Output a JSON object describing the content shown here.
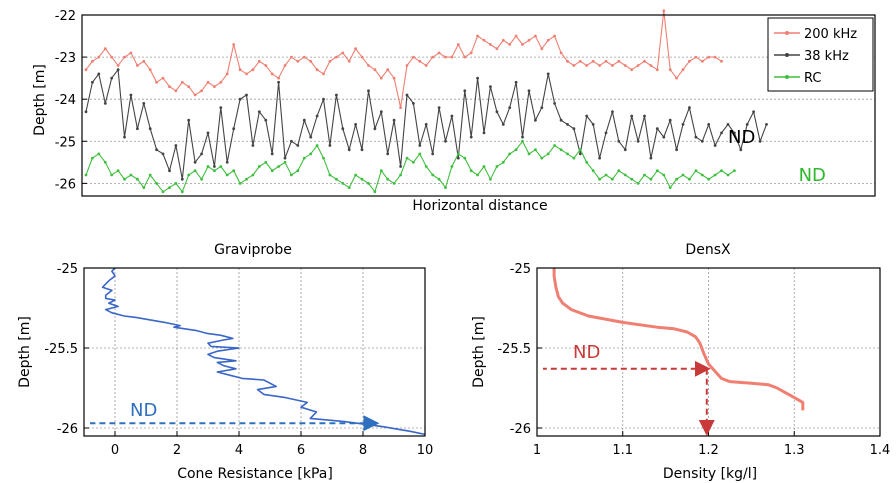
{
  "chart_data": [
    {
      "type": "line",
      "title": "",
      "xlabel": "Horizontal distance",
      "ylabel": "Depth [m]",
      "ylim": [
        -22,
        -26.3
      ],
      "yticks": [
        "-22",
        "-23",
        "-24",
        "-25",
        "-26"
      ],
      "grid": true,
      "legend_position": "top-right",
      "colors": {
        "200 kHz": "#f07f72",
        "38 kHz": "#444444",
        "RC": "#3fbf3f"
      },
      "series": [
        {
          "name": "200 kHz",
          "values": [
            -23.3,
            -23.1,
            -23.0,
            -22.8,
            -23.0,
            -23.2,
            -23.0,
            -22.9,
            -23.2,
            -23.1,
            -23.3,
            -23.6,
            -23.5,
            -23.7,
            -23.8,
            -23.6,
            -23.7,
            -23.9,
            -23.8,
            -23.6,
            -23.7,
            -23.6,
            -23.4,
            -22.7,
            -23.3,
            -23.4,
            -23.3,
            -23.1,
            -23.2,
            -23.4,
            -23.5,
            -23.2,
            -23.0,
            -23.1,
            -23.0,
            -23.1,
            -23.3,
            -23.4,
            -23.1,
            -23.0,
            -22.9,
            -23.1,
            -22.8,
            -23.0,
            -23.2,
            -23.3,
            -23.5,
            -23.3,
            -23.5,
            -24.2,
            -23.2,
            -23.0,
            -23.1,
            -23.2,
            -23.0,
            -22.9,
            -23.0,
            -23.0,
            -22.7,
            -23.0,
            -22.9,
            -22.5,
            -22.6,
            -22.7,
            -22.8,
            -22.6,
            -22.7,
            -22.5,
            -22.7,
            -22.6,
            -22.5,
            -22.8,
            -22.6,
            -22.5,
            -22.9,
            -23.1,
            -23.2,
            -23.1,
            -23.2,
            -23.1,
            -23.2,
            -23.1,
            -23.2,
            -23.1,
            -23.2,
            -23.3,
            -23.2,
            -23.1,
            -23.2,
            -23.3,
            -21.9,
            -23.3,
            -23.5,
            -23.3,
            -23.1,
            -23.0,
            -23.1,
            -23.0,
            -23.0,
            -23.1
          ]
        },
        {
          "name": "38 kHz",
          "values": [
            -24.3,
            -23.6,
            -23.4,
            -24.1,
            -23.5,
            -23.3,
            -24.9,
            -23.9,
            -24.7,
            -24.1,
            -24.7,
            -25.2,
            -25.3,
            -25.7,
            -25.1,
            -25.9,
            -24.5,
            -25.5,
            -25.3,
            -24.8,
            -25.6,
            -24.2,
            -25.5,
            -24.7,
            -24.0,
            -23.9,
            -25.1,
            -24.3,
            -24.5,
            -25.3,
            -23.6,
            -25.4,
            -25.0,
            -25.1,
            -24.5,
            -24.9,
            -24.4,
            -24.0,
            -25.1,
            -23.9,
            -24.7,
            -25.2,
            -24.6,
            -25.2,
            -23.8,
            -24.7,
            -24.3,
            -25.3,
            -24.5,
            -25.6,
            -23.9,
            -24.1,
            -25.1,
            -24.6,
            -25.3,
            -24.2,
            -25.0,
            -24.4,
            -25.4,
            -23.8,
            -24.9,
            -23.5,
            -24.8,
            -23.7,
            -24.3,
            -24.6,
            -24.2,
            -23.6,
            -24.9,
            -23.8,
            -24.5,
            -24.2,
            -23.4,
            -24.1,
            -24.5,
            -24.6,
            -24.7,
            -25.3,
            -24.4,
            -24.6,
            -25.4,
            -24.8,
            -24.3,
            -25.0,
            -25.2,
            -24.4,
            -25.0,
            -24.4,
            -25.4,
            -24.7,
            -24.9,
            -24.5,
            -25.2,
            -24.6,
            -24.2,
            -24.9,
            -25.0,
            -24.6,
            -25.1,
            -24.8,
            -24.6,
            -24.8,
            -25.2,
            -24.6,
            -24.3,
            -25.0,
            -24.6
          ]
        },
        {
          "name": "RC",
          "values": [
            -25.8,
            -25.4,
            -25.3,
            -25.5,
            -25.8,
            -25.7,
            -25.9,
            -25.8,
            -25.9,
            -26.1,
            -25.8,
            -26.0,
            -26.2,
            -26.1,
            -26.0,
            -26.2,
            -25.8,
            -25.7,
            -25.9,
            -25.6,
            -25.7,
            -25.6,
            -25.8,
            -25.7,
            -26.0,
            -25.9,
            -25.8,
            -25.6,
            -25.5,
            -25.7,
            -25.6,
            -25.5,
            -25.8,
            -25.7,
            -25.4,
            -25.3,
            -25.1,
            -25.4,
            -25.8,
            -25.9,
            -26.0,
            -26.1,
            -25.8,
            -25.9,
            -26.0,
            -26.2,
            -25.7,
            -25.9,
            -26.0,
            -25.8,
            -25.4,
            -25.5,
            -25.3,
            -25.6,
            -25.8,
            -25.9,
            -26.1,
            -25.6,
            -25.3,
            -25.4,
            -25.7,
            -25.8,
            -25.6,
            -25.9,
            -25.6,
            -25.5,
            -25.3,
            -25.2,
            -25.0,
            -25.3,
            -25.2,
            -25.4,
            -25.3,
            -25.1,
            -25.2,
            -25.3,
            -25.4,
            -25.2,
            -25.5,
            -25.7,
            -25.9,
            -25.8,
            -25.9,
            -25.7,
            -25.8,
            -25.9,
            -26.0,
            -25.8,
            -25.9,
            -25.7,
            -25.8,
            -26.1,
            -25.9,
            -25.8,
            -25.9,
            -25.7,
            -25.8,
            -25.9,
            -25.8,
            -25.7,
            -25.8,
            -25.7
          ]
        }
      ],
      "annotations": [
        {
          "text": "ND",
          "color": "#000000",
          "x": 100,
          "y": -24.9
        },
        {
          "text": "ND",
          "color": "#2eb82e",
          "x": 111,
          "y": -25.8
        }
      ]
    },
    {
      "type": "line",
      "title": "Graviprobe",
      "xlabel": "Cone Resistance [kPa]",
      "ylabel": "Depth [m]",
      "xlim": [
        -1,
        10
      ],
      "ylim": [
        -25,
        -26.05
      ],
      "xticks": [
        "0",
        "2",
        "4",
        "6",
        "8",
        "10"
      ],
      "yticks": [
        "-25",
        "-25.5",
        "-26"
      ],
      "grid": true,
      "color": "#3a66c8",
      "x": [
        0.0,
        -0.1,
        0.0,
        -0.2,
        -0.4,
        -0.1,
        -0.3,
        -0.3,
        0.0,
        -0.2,
        0.1,
        -0.3,
        -0.1,
        0.3,
        0.7,
        1.0,
        1.6,
        2.1,
        1.9,
        2.6,
        3.0,
        3.4,
        3.8,
        3.5,
        3.0,
        3.1,
        4.0,
        3.3,
        3.0,
        3.2,
        3.9,
        3.3,
        3.5,
        3.9,
        3.3,
        3.7,
        4.1,
        4.8,
        5.2,
        4.6,
        4.8,
        5.5,
        6.2,
        6.0,
        6.5,
        6.3,
        7.4,
        8.6,
        9.5,
        10.0
      ],
      "y": [
        -25.0,
        -25.02,
        -25.05,
        -25.08,
        -25.12,
        -25.14,
        -25.17,
        -25.19,
        -25.2,
        -25.22,
        -25.24,
        -25.26,
        -25.28,
        -25.3,
        -25.31,
        -25.32,
        -25.34,
        -25.36,
        -25.37,
        -25.39,
        -25.41,
        -25.42,
        -25.44,
        -25.45,
        -25.47,
        -25.49,
        -25.5,
        -25.52,
        -25.54,
        -25.56,
        -25.58,
        -25.59,
        -25.61,
        -25.63,
        -25.65,
        -25.67,
        -25.69,
        -25.7,
        -25.74,
        -25.76,
        -25.79,
        -25.81,
        -25.84,
        -25.87,
        -25.9,
        -25.94,
        -25.96,
        -25.99,
        -26.02,
        -26.04
      ],
      "annotation": {
        "text": "ND",
        "color": "#2f6fc0",
        "arrow_from": [
          8.4,
          -26.02
        ],
        "arrow_to": [
          -1,
          -26.02
        ]
      }
    },
    {
      "type": "line",
      "title": "DensX",
      "xlabel": "Density [kg/l]",
      "ylabel": "Depth [m]",
      "xlim": [
        1,
        1.4
      ],
      "ylim": [
        -25,
        -26.05
      ],
      "xticks": [
        "1",
        "1.1",
        "1.2",
        "1.3",
        "1.4"
      ],
      "yticks": [
        "-25",
        "-25.5",
        "-26"
      ],
      "grid": true,
      "color": "#f07f72",
      "x": [
        1.02,
        1.02,
        1.022,
        1.025,
        1.03,
        1.04,
        1.06,
        1.1,
        1.14,
        1.16,
        1.175,
        1.185,
        1.19,
        1.195,
        1.2,
        1.205,
        1.21,
        1.215,
        1.225,
        1.25,
        1.27,
        1.28,
        1.29,
        1.3,
        1.31,
        1.31
      ],
      "y": [
        -25.0,
        -25.05,
        -25.12,
        -25.18,
        -25.22,
        -25.26,
        -25.3,
        -25.34,
        -25.37,
        -25.38,
        -25.4,
        -25.43,
        -25.47,
        -25.54,
        -25.6,
        -25.63,
        -25.66,
        -25.69,
        -25.71,
        -25.72,
        -25.73,
        -25.75,
        -25.78,
        -25.81,
        -25.84,
        -25.89
      ],
      "annotation": {
        "text": "ND",
        "color": "#c83a3a",
        "point": [
          1.198,
          -25.63
        ]
      }
    }
  ]
}
